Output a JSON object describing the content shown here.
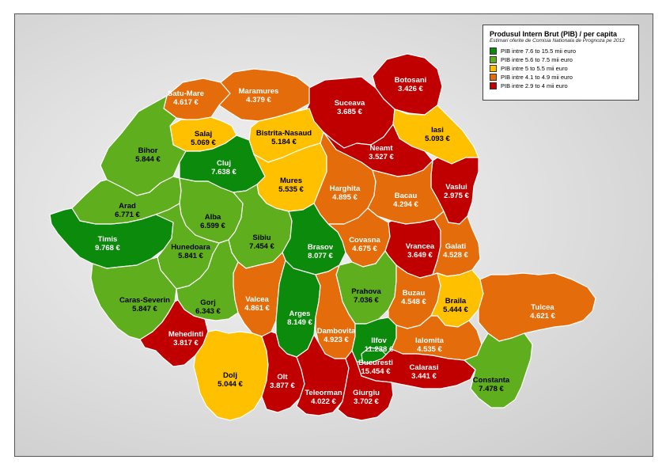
{
  "legend": {
    "title": "Produsul Intern Brut (PIB) / per capita",
    "subtitle": "Estimari oferite de Comisia Nationala de Prognoza pe 2012",
    "classes": [
      {
        "label": "PIB intre 7.6 to 15.5 mii euro",
        "color": "#0b8a0b"
      },
      {
        "label": "PIB intre 5.6 to 7.5 mii euro",
        "color": "#5fae1e"
      },
      {
        "label": "PIB intre 5 to 5.5 mii euro",
        "color": "#ffc000"
      },
      {
        "label": "PIB intre 4.1 to 4.9 mii euro",
        "color": "#e46c0a"
      },
      {
        "label": "PIB intre 2.9 to 4 mii euro",
        "color": "#c00000"
      }
    ]
  },
  "counties": [
    {
      "id": "satu-mare",
      "name": "Satu-Mare",
      "value": "4.617 €"
    },
    {
      "id": "maramures",
      "name": "Maramures",
      "value": "4.379 €"
    },
    {
      "id": "botosani",
      "name": "Botosani",
      "value": "3.426 €"
    },
    {
      "id": "suceava",
      "name": "Suceava",
      "value": "3.685 €"
    },
    {
      "id": "salaj",
      "name": "Salaj",
      "value": "5.069 €"
    },
    {
      "id": "bistrita-nasaud",
      "name": "Bistrita-Nasaud",
      "value": "5.184 €"
    },
    {
      "id": "iasi",
      "name": "Iasi",
      "value": "5.093 €"
    },
    {
      "id": "bihor",
      "name": "Bihor",
      "value": "5.844 €"
    },
    {
      "id": "cluj",
      "name": "Cluj",
      "value": "7.638 €"
    },
    {
      "id": "neamt",
      "name": "Neamt",
      "value": "3.527 €"
    },
    {
      "id": "mures",
      "name": "Mures",
      "value": "5.535 €"
    },
    {
      "id": "harghita",
      "name": "Harghita",
      "value": "4.895 €"
    },
    {
      "id": "vaslui",
      "name": "Vaslui",
      "value": "2.975 €"
    },
    {
      "id": "bacau",
      "name": "Bacau",
      "value": "4.294 €"
    },
    {
      "id": "arad",
      "name": "Arad",
      "value": "6.771 €"
    },
    {
      "id": "alba",
      "name": "Alba",
      "value": "6.599 €"
    },
    {
      "id": "timis",
      "name": "Timis",
      "value": "9.768 €"
    },
    {
      "id": "hunedoara",
      "name": "Hunedoara",
      "value": "5.841 €"
    },
    {
      "id": "sibiu",
      "name": "Sibiu",
      "value": "7.454 €"
    },
    {
      "id": "brasov",
      "name": "Brasov",
      "value": "8.077 €"
    },
    {
      "id": "covasna",
      "name": "Covasna",
      "value": "4.675 €"
    },
    {
      "id": "vrancea",
      "name": "Vrancea",
      "value": "3.649 €"
    },
    {
      "id": "galati",
      "name": "Galati",
      "value": "4.528 €"
    },
    {
      "id": "caras-severin",
      "name": "Caras-Severin",
      "value": "5.847 €"
    },
    {
      "id": "valcea",
      "name": "Valcea",
      "value": "4.861 €"
    },
    {
      "id": "arges",
      "name": "Arges",
      "value": "8.149 €"
    },
    {
      "id": "prahova",
      "name": "Prahova",
      "value": "7.036 €"
    },
    {
      "id": "buzau",
      "name": "Buzau",
      "value": "4.548 €"
    },
    {
      "id": "braila",
      "name": "Braila",
      "value": "5.444 €"
    },
    {
      "id": "tulcea",
      "name": "Tulcea",
      "value": "4.621 €"
    },
    {
      "id": "gorj",
      "name": "Gorj",
      "value": "6.343 €"
    },
    {
      "id": "mehedinti",
      "name": "Mehedinti",
      "value": "3.817 €"
    },
    {
      "id": "dambovita",
      "name": "Dambovita",
      "value": "4.923 €"
    },
    {
      "id": "ilfov",
      "name": "Ilfov",
      "value": "11.238 €"
    },
    {
      "id": "ialomita",
      "name": "Ialomita",
      "value": "4.535 €"
    },
    {
      "id": "bucuresti",
      "name": "Bucuresti",
      "value": "15.454 €"
    },
    {
      "id": "calarasi",
      "name": "Calarasi",
      "value": "3.441 €"
    },
    {
      "id": "dolj",
      "name": "Dolj",
      "value": "5.044 €"
    },
    {
      "id": "olt",
      "name": "Olt",
      "value": "3.877 €"
    },
    {
      "id": "teleorman",
      "name": "Teleorman",
      "value": "4.022 €"
    },
    {
      "id": "giurgiu",
      "name": "Giurgiu",
      "value": "3.702 €"
    },
    {
      "id": "constanta",
      "name": "Constanta",
      "value": "7.478 €"
    }
  ]
}
